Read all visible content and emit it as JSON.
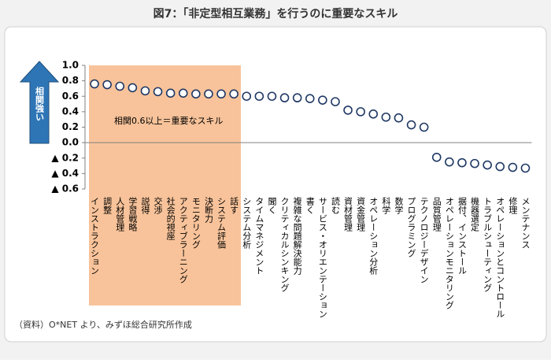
{
  "chart_data": {
    "type": "scatter",
    "title": "図7：「非定型相互業務」を行うのに重要なスキル",
    "annotation": "相関0.6以上＝重要なスキル",
    "arrow_label": "相関強い",
    "source": "（資料）O*NET より、みずほ総合研究所作成",
    "categories": [
      "インストラクション",
      "調整",
      "人材管理",
      "学習戦略",
      "説得",
      "交渉",
      "社会的視座",
      "アクティブラーニング",
      "モニタリング",
      "決断力",
      "システム評価",
      "話す",
      "システム分析",
      "タイムマネジメント",
      "聞く",
      "クリティカルシンキング",
      "複雑な問題解決能力",
      "書く",
      "サービス・オリエンテーション",
      "読む",
      "資材管理",
      "資金管理",
      "オペレーション分析",
      "科学",
      "数学",
      "プログラミング",
      "テクノロジーデザイン",
      "品質管理",
      "オペレーションモニタリング",
      "据付、インストール",
      "機器選定",
      "トラブルシューティング",
      "オペレーションとコントロール",
      "修理",
      "メンテナンス"
    ],
    "values": [
      0.76,
      0.75,
      0.73,
      0.71,
      0.67,
      0.66,
      0.64,
      0.64,
      0.63,
      0.63,
      0.63,
      0.63,
      0.6,
      0.6,
      0.6,
      0.58,
      0.58,
      0.57,
      0.55,
      0.53,
      0.42,
      0.4,
      0.37,
      0.33,
      0.32,
      0.23,
      0.2,
      -0.19,
      -0.25,
      -0.26,
      -0.27,
      -0.29,
      -0.31,
      -0.32,
      -0.33
    ],
    "color": "#1f3864",
    "ylim": [
      -0.6,
      1.0
    ],
    "yticks": [
      {
        "value": 1.0,
        "label": "1.0"
      },
      0.8,
      0.6,
      0.4,
      0.2,
      {
        "value": 0,
        "label": "0.0"
      },
      {
        "value": -0.2,
        "label": "▲ 0.2"
      },
      {
        "value": -0.4,
        "label": "▲ 0.4"
      },
      {
        "value": -0.6,
        "label": "▲ 0.6"
      }
    ]
  }
}
